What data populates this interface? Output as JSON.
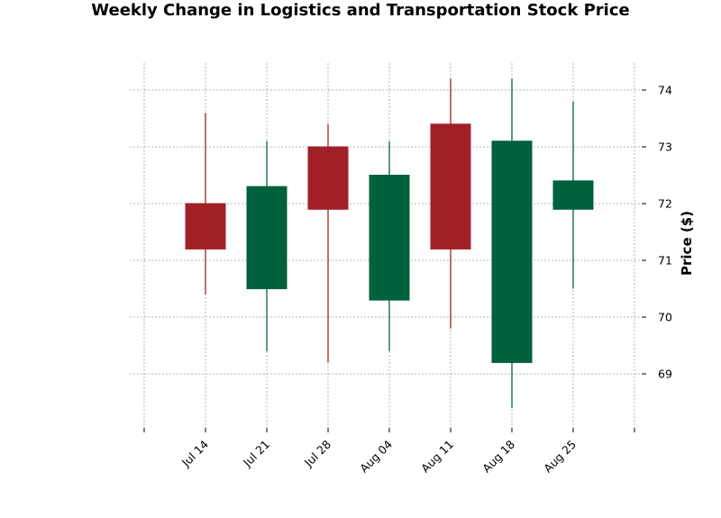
{
  "chart_data": {
    "type": "candlestick",
    "title": "Weekly Change in Logistics and Transportation Stock Price",
    "xlabel": "",
    "ylabel": "Price ($)",
    "ylim": [
      68.1,
      74.5
    ],
    "yticks": [
      69,
      70,
      71,
      72,
      73,
      74
    ],
    "grid": true,
    "y_axis_side": "right",
    "colors": {
      "up": "#00613d",
      "down": "#a12028",
      "grid": "#a0a0a0"
    },
    "categories": [
      "Jul 14",
      "Jul 21",
      "Jul 28",
      "Aug 04",
      "Aug 11",
      "Aug 18",
      "Aug 25"
    ],
    "candles": [
      {
        "date": "Jul 14",
        "open": 72.0,
        "high": 73.6,
        "low": 70.4,
        "close": 71.2
      },
      {
        "date": "Jul 21",
        "open": 70.5,
        "high": 73.1,
        "low": 69.4,
        "close": 72.3
      },
      {
        "date": "Jul 28",
        "open": 73.0,
        "high": 73.4,
        "low": 69.2,
        "close": 71.9
      },
      {
        "date": "Aug 04",
        "open": 70.3,
        "high": 73.1,
        "low": 69.4,
        "close": 72.5
      },
      {
        "date": "Aug 11",
        "open": 73.4,
        "high": 74.2,
        "low": 69.8,
        "close": 71.2
      },
      {
        "date": "Aug 18",
        "open": 69.2,
        "high": 74.2,
        "low": 68.4,
        "close": 73.1
      },
      {
        "date": "Aug 25",
        "open": 71.9,
        "high": 73.8,
        "low": 70.5,
        "close": 72.4
      }
    ]
  }
}
